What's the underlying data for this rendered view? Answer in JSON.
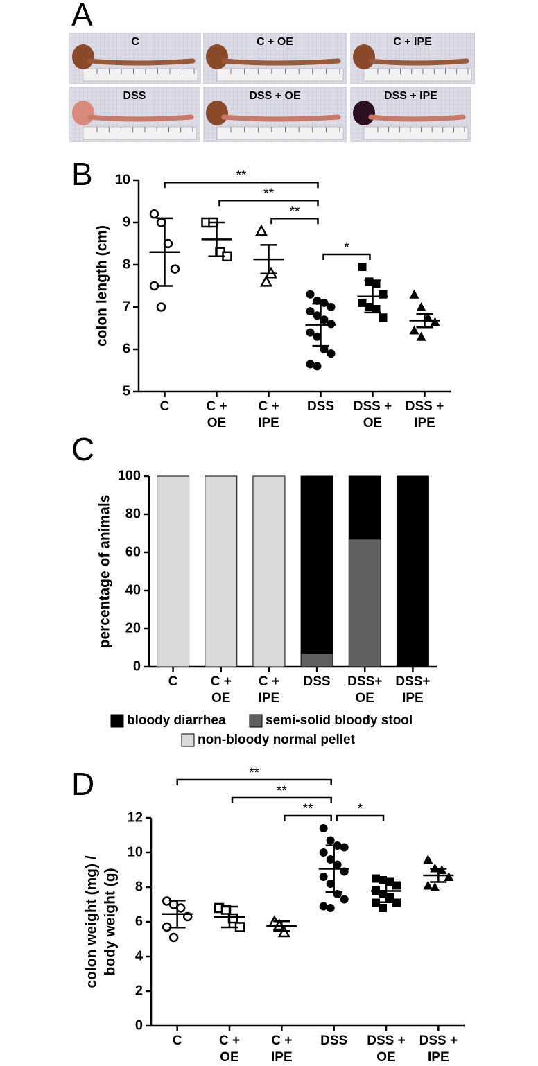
{
  "panel_a": {
    "label": "A",
    "photos": [
      "C",
      "C + OE",
      "C + IPE",
      "DSS",
      "DSS + OE",
      "DSS + IPE"
    ]
  },
  "chart_data": [
    {
      "type": "dotplot",
      "panel": "B",
      "ylabel": [
        "colon length (cm)"
      ],
      "categories": [
        "C",
        "C + OE",
        "C + IPE",
        "DSS",
        "DSS + OE",
        "DSS + IPE"
      ],
      "markers": [
        "open-circle",
        "open-square",
        "open-triangle",
        "circle",
        "square",
        "triangle"
      ],
      "points": [
        [
          9.2,
          9.0,
          8.5,
          7.9,
          7.5,
          7.0
        ],
        [
          9.0,
          9.0,
          8.3,
          8.2
        ],
        [
          8.8,
          7.6,
          7.8
        ],
        [
          7.3,
          7.15,
          7.1,
          7.0,
          6.9,
          6.8,
          6.7,
          6.6,
          6.4,
          6.3,
          6.0,
          5.9,
          5.65,
          5.6
        ],
        [
          7.95,
          7.6,
          7.55,
          7.3,
          7.1,
          7.0,
          6.95,
          6.75
        ],
        [
          7.3,
          7.0,
          6.75,
          6.65,
          6.45,
          6.3
        ]
      ],
      "means": [
        8.3,
        8.6,
        8.13,
        6.58,
        7.25,
        6.68
      ],
      "sd": [
        0.8,
        0.4,
        0.34,
        0.5,
        0.38,
        0.16
      ],
      "ylim": [
        5,
        10
      ],
      "yticks": [
        5,
        6,
        7,
        8,
        9,
        10
      ],
      "annotations": [
        {
          "from": "C",
          "to": "DSS",
          "label": "**"
        },
        {
          "from": "C + OE",
          "to": "DSS",
          "label": "**"
        },
        {
          "from": "C + IPE",
          "to": "DSS",
          "label": "**"
        },
        {
          "from": "DSS",
          "to": "DSS + OE",
          "label": "*"
        }
      ]
    },
    {
      "type": "stacked-bar",
      "panel": "C",
      "ylabel": [
        "percentage of animals"
      ],
      "categories": [
        "C",
        "C + OE",
        "C + IPE",
        "DSS",
        "DSS+ OE",
        "DSS+ IPE"
      ],
      "series": [
        {
          "name": "bloody diarrhea",
          "color": "#000000",
          "values": [
            0,
            0,
            0,
            93,
            33,
            100
          ]
        },
        {
          "name": "semi-solid bloody stool",
          "color": "#606060",
          "values": [
            0,
            0,
            0,
            7,
            67,
            0
          ]
        },
        {
          "name": "non-bloody normal pellet",
          "color": "#d9d9d9",
          "values": [
            100,
            100,
            100,
            0,
            0,
            0
          ]
        }
      ],
      "ylim": [
        0,
        100
      ],
      "yticks": [
        0,
        20,
        40,
        60,
        80,
        100
      ]
    },
    {
      "type": "dotplot",
      "panel": "D",
      "ylabel": [
        "colon weight (mg) /",
        "body weight (g)"
      ],
      "categories": [
        "C",
        "C + OE",
        "C + IPE",
        "DSS",
        "DSS + OE",
        "DSS + IPE"
      ],
      "markers": [
        "open-circle",
        "open-square",
        "open-triangle",
        "circle",
        "square",
        "triangle"
      ],
      "points": [
        [
          7.2,
          7.0,
          6.8,
          6.3,
          5.7,
          5.1
        ],
        [
          6.8,
          6.7,
          6.2,
          5.7
        ],
        [
          6.0,
          5.8,
          5.4
        ],
        [
          11.4,
          10.7,
          10.4,
          10.3,
          10.0,
          9.6,
          9.3,
          8.9,
          8.6,
          8.2,
          7.6,
          7.3,
          6.9,
          6.8
        ],
        [
          8.5,
          8.4,
          8.3,
          8.1,
          7.8,
          7.6,
          7.4,
          7.1,
          7.1,
          6.8
        ],
        [
          9.6,
          9.1,
          9.0,
          8.6,
          8.1,
          8.0
        ]
      ],
      "means": [
        6.45,
        6.28,
        5.75,
        9.06,
        7.78,
        8.68
      ],
      "sd": [
        0.78,
        0.6,
        0.28,
        1.35,
        0.65,
        0.38
      ],
      "ylim": [
        0,
        12
      ],
      "yticks": [
        0,
        2,
        4,
        6,
        8,
        10,
        12
      ],
      "annotations": [
        {
          "from": "C",
          "to": "DSS",
          "label": "**"
        },
        {
          "from": "C + OE",
          "to": "DSS",
          "label": "**"
        },
        {
          "from": "C + IPE",
          "to": "DSS",
          "label": "**"
        },
        {
          "from": "DSS",
          "to": "DSS + OE",
          "label": "*"
        }
      ]
    }
  ]
}
